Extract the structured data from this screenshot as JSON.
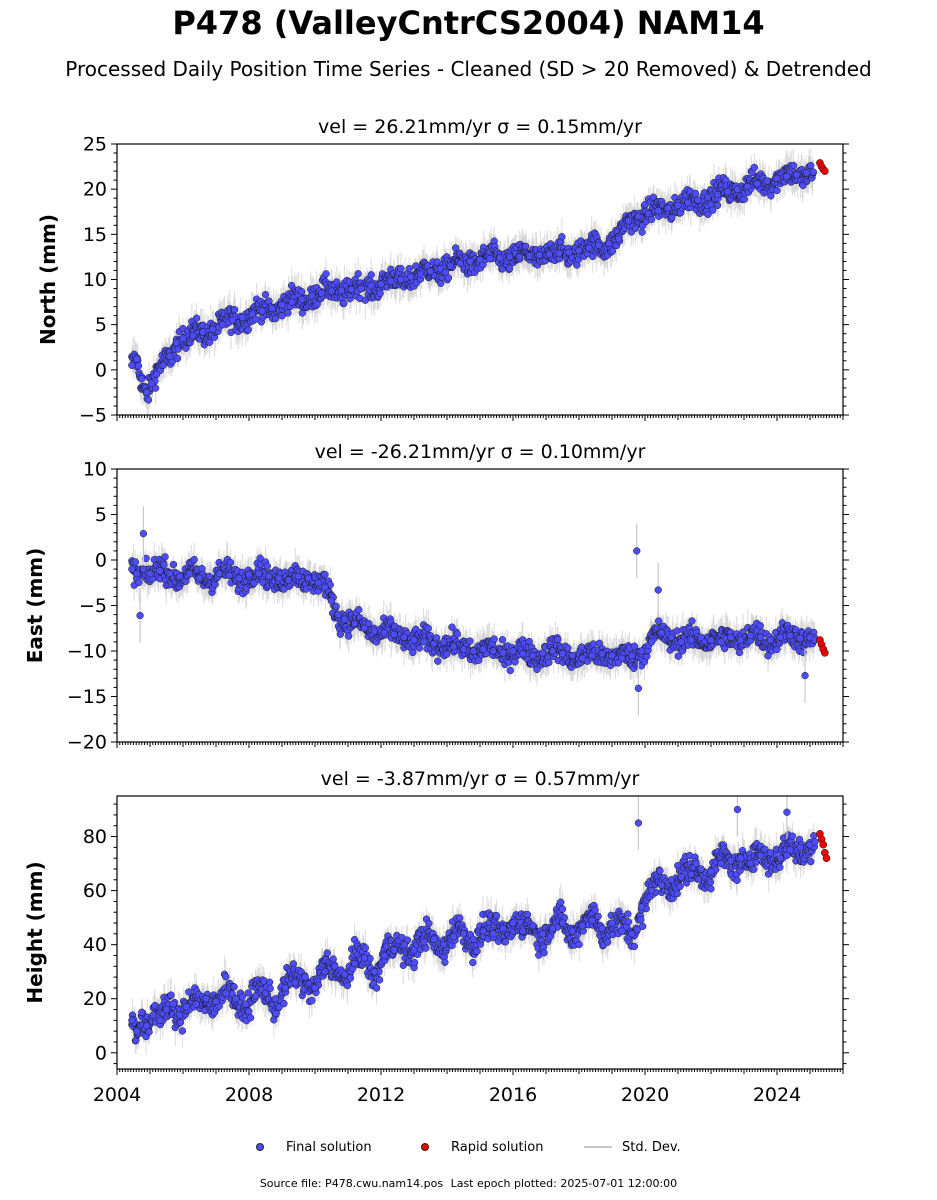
{
  "figure": {
    "title": "P478 (ValleyCntrCS2004) NAM14",
    "subtitle": "Processed Daily Position Time Series - Cleaned (SD > 20 Removed) & Detrended"
  },
  "legend": {
    "final_label": "Final solution",
    "rapid_label": "Rapid solution",
    "std_label": "Std. Dev."
  },
  "footer": {
    "source_label": "Source file: P478.cwu.nam14.pos",
    "last_epoch_label": "Last epoch plotted: 2025-07-01 12:00:00"
  },
  "colors": {
    "final": "#4d4dff",
    "rapid": "#ee0000",
    "std_dev": "#c8c8c8",
    "marker_edge": "#1a1a1a"
  },
  "chart_data": [
    {
      "type": "scatter",
      "title": "vel = 26.21mm/yr   σ = 0.15mm/yr",
      "ylabel": "North (mm)",
      "xlim": [
        2004,
        2026
      ],
      "ylim": [
        -5,
        25
      ],
      "yticks": [
        -5,
        0,
        5,
        10,
        15,
        20,
        25
      ],
      "xticks": [
        2004,
        2008,
        2012,
        2016,
        2020,
        2024
      ],
      "show_xtick_labels": false,
      "series": [
        {
          "name": "Final solution",
          "x": [
            2004.45,
            2004.6,
            2004.75,
            2004.9,
            2005.05,
            2005.2,
            2005.4,
            2005.6,
            2005.8,
            2006.0,
            2006.3,
            2006.6,
            2006.9,
            2007.2,
            2007.5,
            2007.8,
            2008.1,
            2008.4,
            2008.7,
            2009.0,
            2009.3,
            2009.6,
            2009.9,
            2010.2,
            2010.5,
            2010.8,
            2011.1,
            2011.4,
            2011.7,
            2012.0,
            2012.3,
            2012.6,
            2012.9,
            2013.2,
            2013.5,
            2013.8,
            2014.1,
            2014.4,
            2014.7,
            2015.0,
            2015.3,
            2015.6,
            2015.9,
            2016.2,
            2016.5,
            2016.8,
            2017.1,
            2017.4,
            2017.7,
            2018.0,
            2018.3,
            2018.6,
            2018.9,
            2019.2,
            2019.5,
            2019.8,
            2020.1,
            2020.4,
            2020.7,
            2021.0,
            2021.3,
            2021.6,
            2021.9,
            2022.2,
            2022.5,
            2022.8,
            2023.1,
            2023.4,
            2023.7,
            2024.0,
            2024.3,
            2024.6,
            2024.9,
            2025.1
          ],
          "y": [
            0.5,
            1.2,
            -1.0,
            -2.5,
            -1.5,
            -0.5,
            0.5,
            1.5,
            3.0,
            3.5,
            3.8,
            4.2,
            4.5,
            5.0,
            5.5,
            5.8,
            6.2,
            6.5,
            6.8,
            7.2,
            7.5,
            7.8,
            8.2,
            8.5,
            8.7,
            8.8,
            8.9,
            9.0,
            9.3,
            9.5,
            9.8,
            10.0,
            10.3,
            10.6,
            10.9,
            11.2,
            11.5,
            11.8,
            12.0,
            12.2,
            12.3,
            12.4,
            12.5,
            12.5,
            12.6,
            12.7,
            12.8,
            12.9,
            13.0,
            13.2,
            13.5,
            13.8,
            14.0,
            14.5,
            16.5,
            17.0,
            17.3,
            17.6,
            17.9,
            18.2,
            18.5,
            18.8,
            19.1,
            19.4,
            19.7,
            20.0,
            20.3,
            20.6,
            20.9,
            21.2,
            21.4,
            21.6,
            21.8,
            21.9
          ]
        },
        {
          "name": "Rapid solution",
          "x": [
            2025.3,
            2025.35,
            2025.4,
            2025.45
          ],
          "y": [
            22.9,
            22.5,
            22.2,
            22.0
          ]
        }
      ],
      "std_dev_mm": 1.5
    },
    {
      "type": "scatter",
      "title": "vel = -26.21mm/yr   σ = 0.10mm/yr",
      "ylabel": "East (mm)",
      "xlim": [
        2004,
        2026
      ],
      "ylim": [
        -20,
        10
      ],
      "yticks": [
        -20,
        -15,
        -10,
        -5,
        0,
        5,
        10
      ],
      "xticks": [
        2004,
        2008,
        2012,
        2016,
        2020,
        2024
      ],
      "show_xtick_labels": false,
      "series": [
        {
          "name": "Final solution",
          "x": [
            2004.45,
            2004.6,
            2004.8,
            2005.0,
            2005.3,
            2005.6,
            2005.9,
            2006.2,
            2006.5,
            2006.8,
            2007.1,
            2007.4,
            2007.7,
            2008.0,
            2008.3,
            2008.6,
            2008.9,
            2009.2,
            2009.5,
            2009.8,
            2010.1,
            2010.3,
            2010.5,
            2010.7,
            2010.9,
            2011.2,
            2011.5,
            2011.8,
            2012.1,
            2012.4,
            2012.7,
            2013.0,
            2013.3,
            2013.6,
            2013.9,
            2014.2,
            2014.5,
            2014.8,
            2015.1,
            2015.4,
            2015.7,
            2016.0,
            2016.3,
            2016.6,
            2016.9,
            2017.2,
            2017.5,
            2017.8,
            2018.1,
            2018.4,
            2018.7,
            2019.0,
            2019.3,
            2019.6,
            2019.9,
            2020.2,
            2020.5,
            2020.8,
            2021.1,
            2021.4,
            2021.7,
            2022.0,
            2022.3,
            2022.6,
            2022.9,
            2023.2,
            2023.5,
            2023.8,
            2024.1,
            2024.4,
            2024.7,
            2025.0,
            2025.15
          ],
          "y": [
            -1.0,
            -1.5,
            -1.0,
            -1.5,
            -1.2,
            -1.5,
            -1.8,
            -1.5,
            -2.0,
            -1.8,
            -1.5,
            -1.7,
            -2.0,
            -1.6,
            -1.5,
            -1.8,
            -2.0,
            -2.2,
            -1.8,
            -2.0,
            -2.5,
            -3.0,
            -4.5,
            -6.0,
            -6.5,
            -7.0,
            -7.5,
            -7.8,
            -8.0,
            -8.2,
            -8.5,
            -8.8,
            -9.0,
            -9.2,
            -9.0,
            -9.5,
            -9.8,
            -10.0,
            -9.8,
            -10.0,
            -10.2,
            -10.0,
            -10.3,
            -10.5,
            -10.2,
            -10.0,
            -10.3,
            -10.5,
            -10.8,
            -10.5,
            -10.3,
            -10.5,
            -10.8,
            -10.5,
            -10.0,
            -9.0,
            -8.0,
            -8.5,
            -9.0,
            -8.8,
            -8.5,
            -8.8,
            -9.0,
            -8.5,
            -8.8,
            -8.3,
            -8.5,
            -8.8,
            -8.5,
            -8.3,
            -8.6,
            -8.5,
            -8.8
          ]
        },
        {
          "name": "Rapid solution",
          "x": [
            2025.3,
            2025.35,
            2025.4,
            2025.45
          ],
          "y": [
            -8.8,
            -9.3,
            -9.8,
            -10.2
          ]
        }
      ],
      "outliers": {
        "x": [
          2004.7,
          2004.8,
          2019.75,
          2020.4,
          2024.85,
          2019.8
        ],
        "y": [
          -6.1,
          2.9,
          1.0,
          -3.3,
          -12.7,
          -14.1
        ]
      },
      "std_dev_mm": 1.5
    },
    {
      "type": "scatter",
      "title": "vel = -3.87mm/yr   σ = 0.57mm/yr",
      "ylabel": "Height (mm)",
      "xlim": [
        2004,
        2026
      ],
      "ylim": [
        -6,
        95
      ],
      "yticks": [
        0,
        20,
        40,
        60,
        80
      ],
      "xticks": [
        2004,
        2008,
        2012,
        2016,
        2020,
        2024
      ],
      "xtick_labels": [
        "2004",
        "2008",
        "2012",
        "2016",
        "2020",
        "2024"
      ],
      "show_xtick_labels": true,
      "series": [
        {
          "name": "Final solution",
          "x": [
            2004.45,
            2004.6,
            2004.75,
            2004.9,
            2005.1,
            2005.3,
            2005.5,
            2005.7,
            2005.9,
            2006.1,
            2006.4,
            2006.7,
            2007.0,
            2007.3,
            2007.6,
            2007.9,
            2008.2,
            2008.5,
            2008.8,
            2009.1,
            2009.4,
            2009.7,
            2010.0,
            2010.3,
            2010.6,
            2010.9,
            2011.2,
            2011.5,
            2011.8,
            2012.1,
            2012.4,
            2012.7,
            2013.0,
            2013.3,
            2013.6,
            2013.9,
            2014.2,
            2014.5,
            2014.8,
            2015.1,
            2015.4,
            2015.7,
            2016.0,
            2016.3,
            2016.6,
            2016.9,
            2017.2,
            2017.5,
            2017.8,
            2018.1,
            2018.4,
            2018.7,
            2019.0,
            2019.3,
            2019.6,
            2019.9,
            2020.2,
            2020.5,
            2020.8,
            2021.1,
            2021.4,
            2021.7,
            2022.0,
            2022.3,
            2022.6,
            2022.9,
            2023.2,
            2023.5,
            2023.8,
            2024.1,
            2024.4,
            2024.7,
            2025.0,
            2025.15
          ],
          "y": [
            12,
            8,
            15,
            10,
            14,
            12,
            16,
            18,
            14,
            17,
            18,
            20,
            19,
            22,
            20,
            18,
            21,
            22,
            20,
            24,
            26,
            28,
            24,
            30,
            32,
            29,
            33,
            35,
            30,
            36,
            38,
            40,
            38,
            41,
            42,
            40,
            43,
            44,
            42,
            45,
            44,
            46,
            48,
            45,
            47,
            44,
            46,
            48,
            45,
            47,
            49,
            46,
            48,
            45,
            44,
            54,
            60,
            62,
            64,
            65,
            66,
            68,
            67,
            70,
            71,
            72,
            70,
            73,
            74,
            72,
            75,
            76,
            77,
            78
          ]
        },
        {
          "name": "Rapid solution",
          "x": [
            2025.3,
            2025.35,
            2025.4,
            2025.45,
            2025.5
          ],
          "y": [
            81,
            79,
            77,
            74,
            72
          ]
        }
      ],
      "outliers": {
        "x": [
          2019.8,
          2022.8,
          2024.3
        ],
        "y": [
          85,
          90,
          89
        ]
      },
      "std_dev_mm": 5
    }
  ]
}
